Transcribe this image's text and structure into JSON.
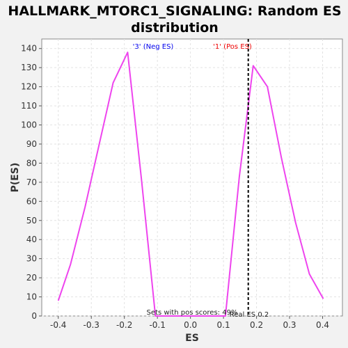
{
  "chart_data": {
    "type": "line",
    "title_lines": [
      "HALLMARK_MTORC1_SIGNALING: Random ES",
      "distribution"
    ],
    "xlabel": "ES",
    "ylabel": "P(ES)",
    "xlim": [
      -0.45,
      0.46
    ],
    "ylim": [
      0,
      145
    ],
    "xticks": [
      -0.4,
      -0.3,
      -0.2,
      -0.1,
      0.0,
      0.1,
      0.2,
      0.3,
      0.4
    ],
    "yticks": [
      0,
      10,
      20,
      30,
      40,
      50,
      60,
      70,
      80,
      90,
      100,
      110,
      120,
      130,
      140
    ],
    "grid": true,
    "series": [
      {
        "color": "#ee44ee",
        "points": [
          [
            -0.4,
            8
          ],
          [
            -0.363,
            27
          ],
          [
            -0.319,
            57
          ],
          [
            -0.276,
            90
          ],
          [
            -0.234,
            122
          ],
          [
            -0.19,
            138
          ],
          [
            -0.148,
            71
          ],
          [
            -0.106,
            0
          ],
          [
            -0.062,
            0
          ],
          [
            -0.02,
            0
          ],
          [
            0.022,
            0
          ],
          [
            0.064,
            0
          ],
          [
            0.106,
            0
          ],
          [
            0.148,
            73
          ],
          [
            0.19,
            131
          ],
          [
            0.233,
            120
          ],
          [
            0.275,
            83
          ],
          [
            0.318,
            49
          ],
          [
            0.36,
            22
          ],
          [
            0.402,
            9
          ]
        ]
      }
    ],
    "real_es": 0.175,
    "annotations": {
      "neg_label": "'3' (Neg ES)",
      "pos_label": "'1' (Pos ES)",
      "neg_color": "#0000ee",
      "pos_color": "#ee0000",
      "pos_scores_text": "Sets with pos scores: 49%",
      "real_es_text": "Real ES 0.2"
    }
  }
}
